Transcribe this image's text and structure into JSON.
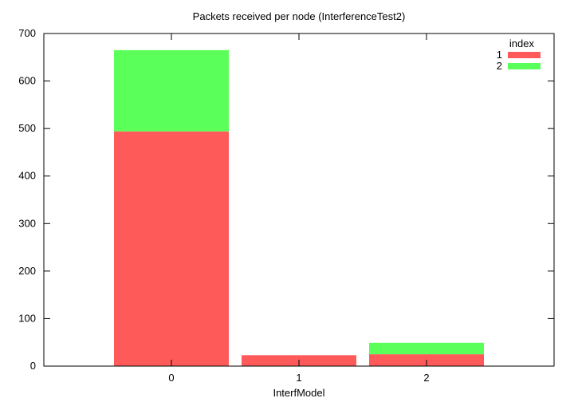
{
  "chart_data": {
    "type": "bar",
    "stacked": true,
    "title": "Packets received per node (InterferenceTest2)",
    "xlabel": "InterfModel",
    "ylabel": "",
    "categories": [
      "0",
      "1",
      "2"
    ],
    "ylim": [
      0,
      700
    ],
    "yticks": [
      0,
      100,
      200,
      300,
      400,
      500,
      600,
      700
    ],
    "legend": {
      "title": "index",
      "position": "top-right"
    },
    "series": [
      {
        "name": "1",
        "color": "#ff5a5a",
        "values": [
          494,
          23,
          25
        ]
      },
      {
        "name": "2",
        "color": "#5aff5a",
        "values": [
          171,
          0,
          24
        ]
      }
    ],
    "grid": false
  }
}
